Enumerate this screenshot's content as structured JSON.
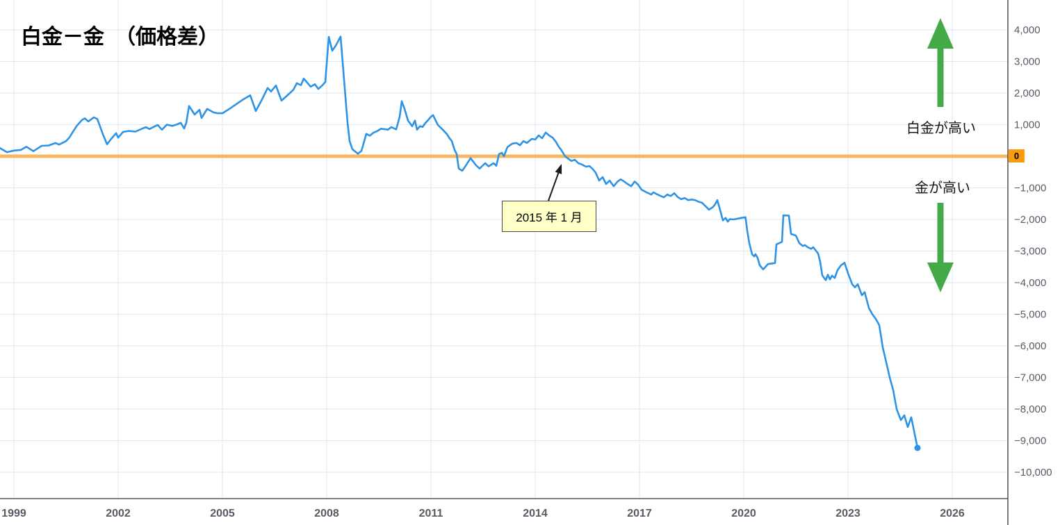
{
  "title": "白金－金　（価格差）",
  "colors": {
    "line": "#2D93E6",
    "zero_line": "#F6B763",
    "zero_badge_bg": "#F99B0C",
    "grid": "#DBE7F3",
    "axis": "#33363C",
    "tick_label": "#565B64",
    "arrow_green": "#44AA48",
    "callout_bg": "#FFFFC8",
    "callout_border": "#454545",
    "callout_arrow": "#1A1A1A"
  },
  "annotations": {
    "callout_text": "2015 年 1 月",
    "upper_label": "白金が高い",
    "lower_label": "金が高い",
    "zero_badge": "0"
  },
  "chart_data": {
    "type": "line",
    "title": "白金－金（価格差）",
    "xlabel": "",
    "ylabel": "",
    "grid": true,
    "legend": "none",
    "xlim": [
      1998.6,
      2027.6
    ],
    "ylim": [
      -10840,
      4950
    ],
    "zero_line": 0,
    "x_ticks": [
      1999,
      2002,
      2005,
      2008,
      2011,
      2014,
      2017,
      2020,
      2023,
      2026
    ],
    "y_ticks": [
      [
        4000,
        "4,000"
      ],
      [
        3000,
        "3,000"
      ],
      [
        2000,
        "2,000"
      ],
      [
        1000,
        "1,000"
      ],
      [
        -1000,
        "−1,000"
      ],
      [
        -2000,
        "−2,000"
      ],
      [
        -3000,
        "−3,000"
      ],
      [
        -4000,
        "−4,000"
      ],
      [
        -5000,
        "−5,000"
      ],
      [
        -6000,
        "−6,000"
      ],
      [
        -7000,
        "−7,000"
      ],
      [
        -8000,
        "−8,000"
      ],
      [
        -9000,
        "−9,000"
      ],
      [
        -10000,
        "−10,000"
      ]
    ],
    "callout_points_at": [
      2015.0,
      0
    ],
    "series": [
      {
        "name": "白金−金 価格差",
        "points": [
          [
            1998.6,
            260
          ],
          [
            1998.8,
            130
          ],
          [
            1999.0,
            180
          ],
          [
            1999.2,
            200
          ],
          [
            1999.36,
            300
          ],
          [
            1999.56,
            160
          ],
          [
            1999.8,
            330
          ],
          [
            2000.0,
            340
          ],
          [
            2000.2,
            420
          ],
          [
            2000.3,
            370
          ],
          [
            2000.5,
            480
          ],
          [
            2000.6,
            600
          ],
          [
            2000.8,
            950
          ],
          [
            2000.96,
            1150
          ],
          [
            2001.04,
            1200
          ],
          [
            2001.14,
            1100
          ],
          [
            2001.3,
            1230
          ],
          [
            2001.4,
            1180
          ],
          [
            2001.56,
            700
          ],
          [
            2001.68,
            380
          ],
          [
            2001.8,
            550
          ],
          [
            2001.94,
            730
          ],
          [
            2002.0,
            590
          ],
          [
            2002.14,
            770
          ],
          [
            2002.3,
            800
          ],
          [
            2002.5,
            780
          ],
          [
            2002.7,
            880
          ],
          [
            2002.8,
            920
          ],
          [
            2002.9,
            860
          ],
          [
            2003.04,
            940
          ],
          [
            2003.14,
            990
          ],
          [
            2003.26,
            840
          ],
          [
            2003.4,
            1000
          ],
          [
            2003.56,
            960
          ],
          [
            2003.7,
            1010
          ],
          [
            2003.8,
            1060
          ],
          [
            2003.9,
            880
          ],
          [
            2003.96,
            1060
          ],
          [
            2004.04,
            1590
          ],
          [
            2004.2,
            1320
          ],
          [
            2004.34,
            1470
          ],
          [
            2004.4,
            1210
          ],
          [
            2004.56,
            1500
          ],
          [
            2004.74,
            1390
          ],
          [
            2004.86,
            1360
          ],
          [
            2005.0,
            1360
          ],
          [
            2005.2,
            1500
          ],
          [
            2005.4,
            1650
          ],
          [
            2005.6,
            1800
          ],
          [
            2005.8,
            1930
          ],
          [
            2005.96,
            1430
          ],
          [
            2006.14,
            1800
          ],
          [
            2006.3,
            2160
          ],
          [
            2006.4,
            2050
          ],
          [
            2006.54,
            2240
          ],
          [
            2006.7,
            1760
          ],
          [
            2006.84,
            1900
          ],
          [
            2006.94,
            2000
          ],
          [
            2007.04,
            2100
          ],
          [
            2007.14,
            2310
          ],
          [
            2007.26,
            2250
          ],
          [
            2007.34,
            2460
          ],
          [
            2007.54,
            2200
          ],
          [
            2007.66,
            2280
          ],
          [
            2007.76,
            2130
          ],
          [
            2007.88,
            2250
          ],
          [
            2007.96,
            2350
          ],
          [
            2008.06,
            3780
          ],
          [
            2008.16,
            3340
          ],
          [
            2008.26,
            3500
          ],
          [
            2008.4,
            3790
          ],
          [
            2008.46,
            2970
          ],
          [
            2008.54,
            1870
          ],
          [
            2008.6,
            1060
          ],
          [
            2008.66,
            480
          ],
          [
            2008.74,
            220
          ],
          [
            2008.9,
            80
          ],
          [
            2009.0,
            170
          ],
          [
            2009.14,
            710
          ],
          [
            2009.24,
            650
          ],
          [
            2009.34,
            740
          ],
          [
            2009.46,
            800
          ],
          [
            2009.56,
            870
          ],
          [
            2009.66,
            860
          ],
          [
            2009.76,
            840
          ],
          [
            2009.86,
            920
          ],
          [
            2010.0,
            850
          ],
          [
            2010.1,
            1250
          ],
          [
            2010.16,
            1740
          ],
          [
            2010.24,
            1500
          ],
          [
            2010.34,
            1130
          ],
          [
            2010.46,
            950
          ],
          [
            2010.54,
            1130
          ],
          [
            2010.6,
            840
          ],
          [
            2010.68,
            950
          ],
          [
            2010.76,
            930
          ],
          [
            2010.84,
            1050
          ],
          [
            2010.92,
            1150
          ],
          [
            2011.0,
            1250
          ],
          [
            2011.06,
            1300
          ],
          [
            2011.2,
            990
          ],
          [
            2011.34,
            840
          ],
          [
            2011.46,
            700
          ],
          [
            2011.54,
            560
          ],
          [
            2011.6,
            480
          ],
          [
            2011.68,
            200
          ],
          [
            2011.74,
            70
          ],
          [
            2011.8,
            -390
          ],
          [
            2011.9,
            -460
          ],
          [
            2012.0,
            -300
          ],
          [
            2012.14,
            -60
          ],
          [
            2012.3,
            -290
          ],
          [
            2012.4,
            -390
          ],
          [
            2012.56,
            -220
          ],
          [
            2012.66,
            -320
          ],
          [
            2012.8,
            -220
          ],
          [
            2012.88,
            -300
          ],
          [
            2012.96,
            70
          ],
          [
            2013.04,
            110
          ],
          [
            2013.1,
            0
          ],
          [
            2013.2,
            290
          ],
          [
            2013.34,
            400
          ],
          [
            2013.46,
            420
          ],
          [
            2013.56,
            350
          ],
          [
            2013.66,
            480
          ],
          [
            2013.76,
            420
          ],
          [
            2013.9,
            550
          ],
          [
            2014.0,
            530
          ],
          [
            2014.1,
            660
          ],
          [
            2014.2,
            570
          ],
          [
            2014.3,
            750
          ],
          [
            2014.4,
            660
          ],
          [
            2014.5,
            590
          ],
          [
            2014.6,
            450
          ],
          [
            2014.66,
            330
          ],
          [
            2014.76,
            180
          ],
          [
            2014.86,
            0
          ],
          [
            2014.94,
            -70
          ],
          [
            2015.04,
            -150
          ],
          [
            2015.14,
            -110
          ],
          [
            2015.24,
            -220
          ],
          [
            2015.34,
            -260
          ],
          [
            2015.46,
            -330
          ],
          [
            2015.56,
            -310
          ],
          [
            2015.66,
            -410
          ],
          [
            2015.74,
            -520
          ],
          [
            2015.84,
            -770
          ],
          [
            2015.94,
            -660
          ],
          [
            2016.04,
            -880
          ],
          [
            2016.14,
            -770
          ],
          [
            2016.26,
            -950
          ],
          [
            2016.36,
            -810
          ],
          [
            2016.46,
            -730
          ],
          [
            2016.56,
            -800
          ],
          [
            2016.66,
            -880
          ],
          [
            2016.76,
            -950
          ],
          [
            2016.86,
            -800
          ],
          [
            2016.96,
            -900
          ],
          [
            2017.06,
            -1060
          ],
          [
            2017.2,
            -1140
          ],
          [
            2017.34,
            -1210
          ],
          [
            2017.4,
            -1140
          ],
          [
            2017.5,
            -1200
          ],
          [
            2017.6,
            -1250
          ],
          [
            2017.7,
            -1300
          ],
          [
            2017.8,
            -1210
          ],
          [
            2017.9,
            -1260
          ],
          [
            2018.0,
            -1170
          ],
          [
            2018.1,
            -1290
          ],
          [
            2018.2,
            -1360
          ],
          [
            2018.3,
            -1320
          ],
          [
            2018.4,
            -1390
          ],
          [
            2018.5,
            -1370
          ],
          [
            2018.6,
            -1390
          ],
          [
            2018.7,
            -1440
          ],
          [
            2018.8,
            -1470
          ],
          [
            2018.9,
            -1580
          ],
          [
            2019.0,
            -1690
          ],
          [
            2019.1,
            -1620
          ],
          [
            2019.16,
            -1550
          ],
          [
            2019.24,
            -1390
          ],
          [
            2019.32,
            -1700
          ],
          [
            2019.4,
            -2030
          ],
          [
            2019.48,
            -1950
          ],
          [
            2019.54,
            -2070
          ],
          [
            2019.6,
            -1990
          ],
          [
            2019.7,
            -2000
          ],
          [
            2019.8,
            -1980
          ],
          [
            2019.94,
            -1950
          ],
          [
            2020.05,
            -1930
          ],
          [
            2020.1,
            -2350
          ],
          [
            2020.16,
            -2750
          ],
          [
            2020.24,
            -3100
          ],
          [
            2020.3,
            -3170
          ],
          [
            2020.34,
            -3100
          ],
          [
            2020.4,
            -3220
          ],
          [
            2020.46,
            -3450
          ],
          [
            2020.56,
            -3580
          ],
          [
            2020.7,
            -3410
          ],
          [
            2020.9,
            -3380
          ],
          [
            2020.94,
            -2790
          ],
          [
            2021.1,
            -2710
          ],
          [
            2021.14,
            -1870
          ],
          [
            2021.3,
            -1880
          ],
          [
            2021.36,
            -2460
          ],
          [
            2021.5,
            -2510
          ],
          [
            2021.6,
            -2750
          ],
          [
            2021.7,
            -2840
          ],
          [
            2021.76,
            -2810
          ],
          [
            2021.84,
            -2880
          ],
          [
            2021.94,
            -2930
          ],
          [
            2022.0,
            -2880
          ],
          [
            2022.14,
            -3080
          ],
          [
            2022.2,
            -3340
          ],
          [
            2022.26,
            -3770
          ],
          [
            2022.36,
            -3920
          ],
          [
            2022.42,
            -3750
          ],
          [
            2022.48,
            -3900
          ],
          [
            2022.54,
            -3780
          ],
          [
            2022.62,
            -3850
          ],
          [
            2022.7,
            -3600
          ],
          [
            2022.8,
            -3450
          ],
          [
            2022.9,
            -3370
          ],
          [
            2023.0,
            -3700
          ],
          [
            2023.12,
            -4050
          ],
          [
            2023.2,
            -4150
          ],
          [
            2023.28,
            -4050
          ],
          [
            2023.4,
            -4400
          ],
          [
            2023.48,
            -4300
          ],
          [
            2023.6,
            -4800
          ],
          [
            2023.7,
            -5000
          ],
          [
            2023.8,
            -5150
          ],
          [
            2023.9,
            -5350
          ],
          [
            2024.0,
            -6050
          ],
          [
            2024.06,
            -6330
          ],
          [
            2024.2,
            -7000
          ],
          [
            2024.3,
            -7400
          ],
          [
            2024.4,
            -8000
          ],
          [
            2024.52,
            -8350
          ],
          [
            2024.62,
            -8200
          ],
          [
            2024.72,
            -8570
          ],
          [
            2024.82,
            -8260
          ],
          [
            2024.92,
            -8800
          ],
          [
            2025.0,
            -9230
          ]
        ]
      }
    ]
  }
}
